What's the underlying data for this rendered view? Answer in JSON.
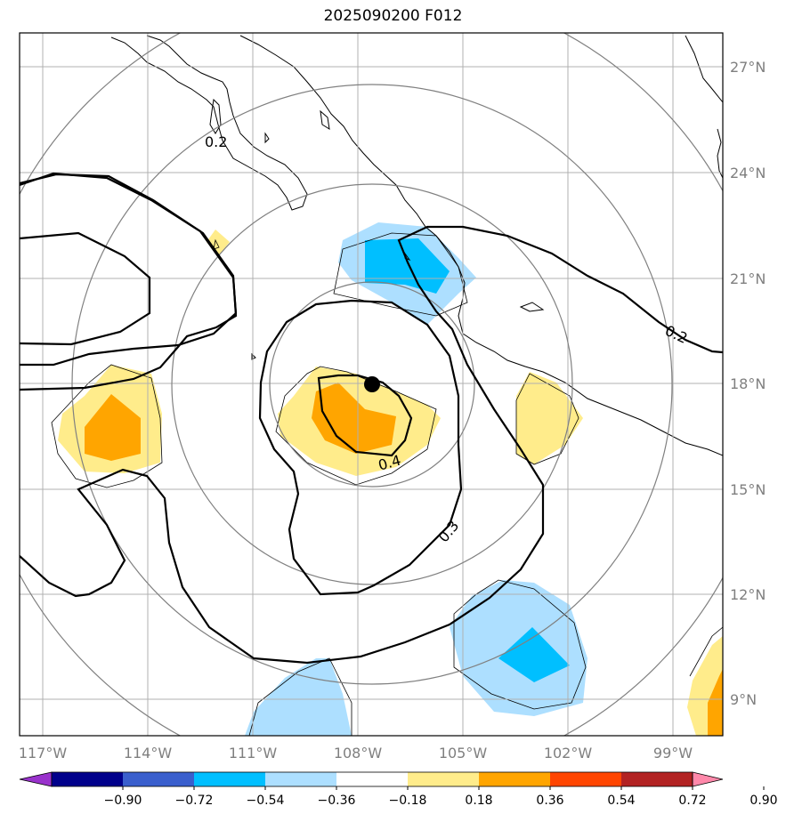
{
  "title": "2025090200 F012",
  "lon_labels": [
    "117°W",
    "114°W",
    "111°W",
    "108°W",
    "105°W",
    "102°W",
    "99°W"
  ],
  "lat_labels": [
    "27°N",
    "24°N",
    "21°N",
    "18°N",
    "15°N",
    "12°N",
    "9°N"
  ],
  "contour_labels": [
    "0.2",
    "0.4",
    "0.3",
    "0.2"
  ],
  "colorbar": {
    "ticks": [
      "−0.90",
      "−0.72",
      "−0.54",
      "−0.36",
      "−0.18",
      "0.18",
      "0.36",
      "0.54",
      "0.72",
      "0.90"
    ],
    "colors": [
      "#9932cc",
      "#00008b",
      "#3a5fcd",
      "#00bfff",
      "#addfff",
      "#ffffff",
      "#ffec8b",
      "#ffa500",
      "#ff4500",
      "#b22222",
      "#ff88aa"
    ]
  },
  "center_marker": "storm-center-dot"
}
